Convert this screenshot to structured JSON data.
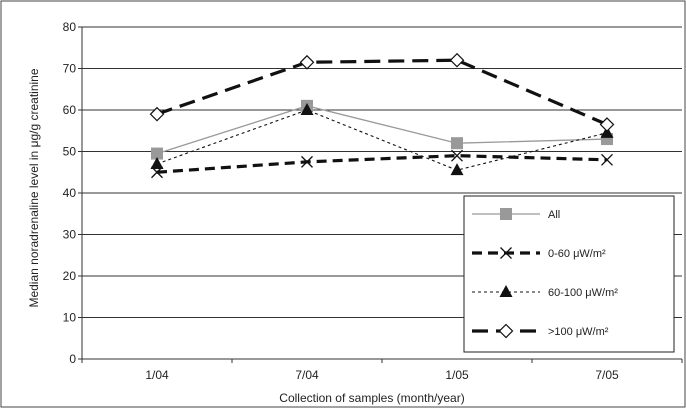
{
  "chart_data": {
    "type": "line",
    "xlabel": "Collection of samples (month/year)",
    "ylabel": "Median noradrenaline level in μg/g creatinine",
    "categories": [
      "1/04",
      "7/04",
      "1/05",
      "7/05"
    ],
    "ylim": [
      0,
      80
    ],
    "yticks": [
      0,
      10,
      20,
      30,
      40,
      50,
      60,
      70,
      80
    ],
    "grid": true,
    "legend_position": "bottom-right",
    "series": [
      {
        "name": "All",
        "values": [
          49.5,
          61,
          52,
          53
        ],
        "color": "#999999",
        "marker": "square",
        "line": "solid-thin"
      },
      {
        "name": "0-60 μW/m²",
        "values": [
          45,
          47.5,
          49,
          48
        ],
        "color": "#111111",
        "marker": "x",
        "line": "dash-thick"
      },
      {
        "name": "60-100 μW/m²",
        "values": [
          47,
          60,
          45.5,
          54.5
        ],
        "color": "#111111",
        "marker": "triangle",
        "line": "dotted-thin"
      },
      {
        "name": ">100 μW/m²",
        "values": [
          59,
          71.5,
          72,
          56.5
        ],
        "color": "#111111",
        "marker": "diamond",
        "line": "longdash-thick"
      }
    ]
  }
}
